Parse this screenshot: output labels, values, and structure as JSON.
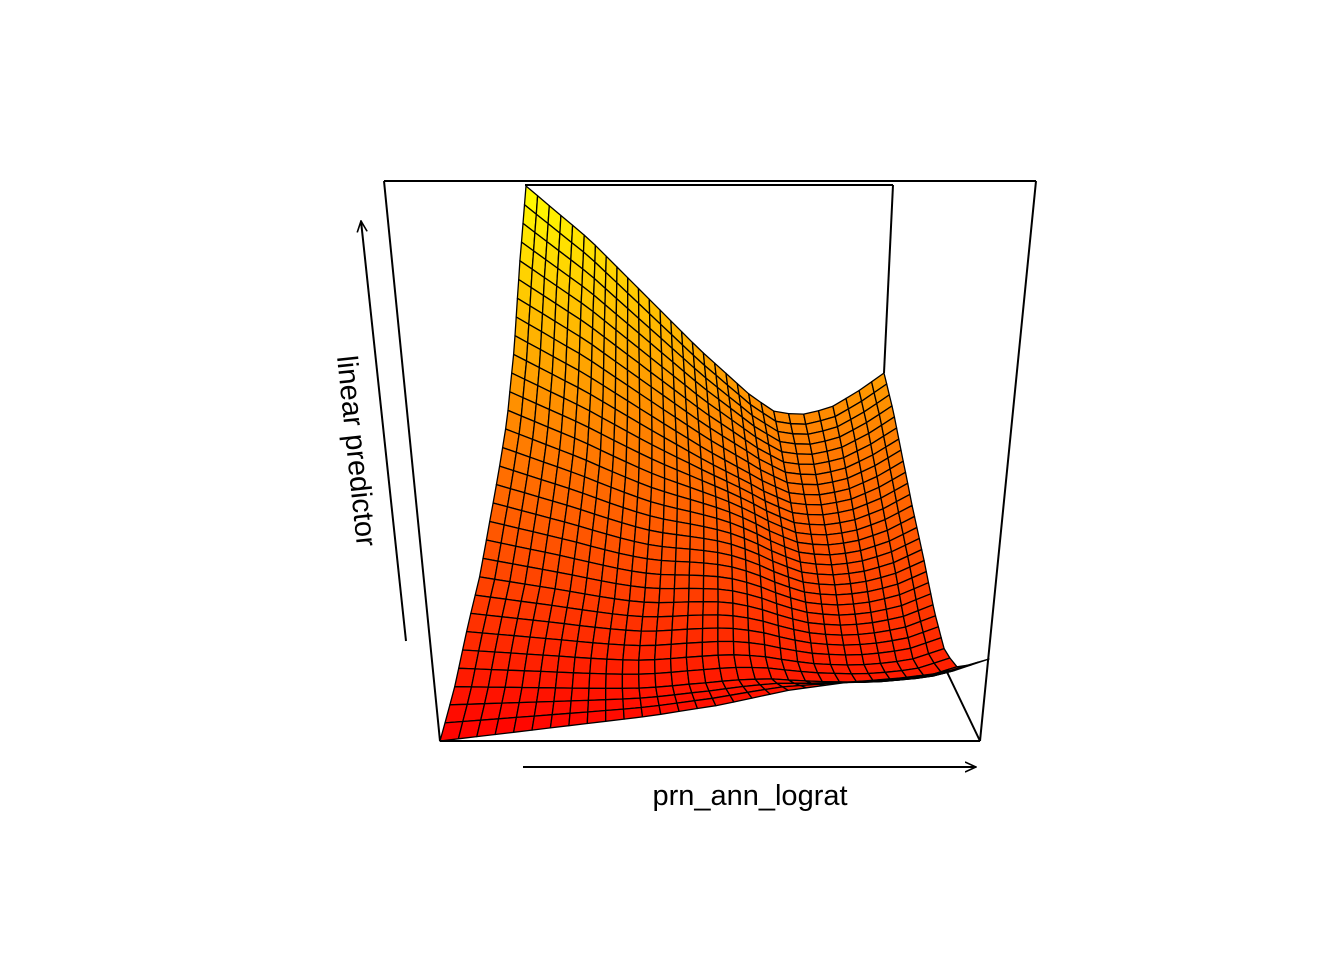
{
  "chart_data": {
    "type": "surface",
    "xlabel": "prn_ann_lograt",
    "zlabel": "linear predictor",
    "colors": {
      "low": "#ff0000",
      "mid": "#ff8000",
      "high": "#ffff00",
      "mesh": "#000000",
      "box": "#000000"
    },
    "grid_resolution": 30
  }
}
